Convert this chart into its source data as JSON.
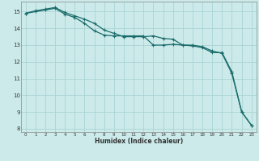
{
  "xlabel": "Humidex (Indice chaleur)",
  "background_color": "#cceaea",
  "line_color": "#1a6b6b",
  "grid_color": "#aad4d4",
  "xlim": [
    -0.5,
    23.5
  ],
  "ylim": [
    7.8,
    15.6
  ],
  "yticks": [
    8,
    9,
    10,
    11,
    12,
    13,
    14,
    15
  ],
  "xticks": [
    0,
    1,
    2,
    3,
    4,
    5,
    6,
    7,
    8,
    9,
    10,
    11,
    12,
    13,
    14,
    15,
    16,
    17,
    18,
    19,
    20,
    21,
    22,
    23
  ],
  "series1_x": [
    0,
    1,
    2,
    3,
    4,
    5,
    6,
    7,
    8,
    9,
    10,
    11,
    12,
    13,
    14,
    15,
    16,
    17,
    18,
    19,
    20,
    21,
    22,
    23
  ],
  "series1_y": [
    14.9,
    15.05,
    15.15,
    15.25,
    14.95,
    14.75,
    14.55,
    14.3,
    13.9,
    13.7,
    13.5,
    13.5,
    13.5,
    13.55,
    13.4,
    13.35,
    13.0,
    13.0,
    12.9,
    12.65,
    12.5,
    11.3,
    9.0,
    8.2
  ],
  "series2_x": [
    0,
    1,
    2,
    3,
    4,
    5,
    6,
    7,
    8,
    9,
    10,
    11,
    12,
    13,
    14,
    15,
    16,
    17,
    18,
    19,
    20,
    21,
    22,
    23
  ],
  "series2_y": [
    14.9,
    15.0,
    15.1,
    15.2,
    14.85,
    14.65,
    14.3,
    13.85,
    13.6,
    13.55,
    13.55,
    13.55,
    13.55,
    13.0,
    13.0,
    13.05,
    13.0,
    12.95,
    12.85,
    12.55,
    12.55,
    11.4,
    9.0,
    8.2
  ]
}
